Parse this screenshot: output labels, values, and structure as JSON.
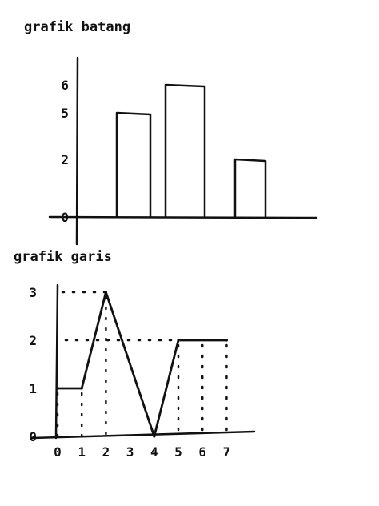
{
  "chart_data": [
    {
      "type": "bar",
      "title": "grafik batang",
      "categories": [
        "",
        "",
        ""
      ],
      "values": [
        5,
        6,
        2
      ],
      "yticks": [
        0,
        2,
        5,
        6
      ],
      "ylim": [
        0,
        6
      ],
      "grid": false,
      "color": "#111111"
    },
    {
      "type": "line",
      "title": "grafik garis",
      "x": [
        0,
        1,
        2,
        4,
        5,
        7
      ],
      "y": [
        1,
        1,
        3,
        0,
        2,
        2
      ],
      "xticks": [
        0,
        1,
        2,
        3,
        4,
        5,
        6,
        7
      ],
      "yticks": [
        0,
        1,
        2,
        3
      ],
      "xlim": [
        0,
        7
      ],
      "ylim": [
        0,
        3
      ],
      "grid": false,
      "color": "#111111"
    }
  ]
}
